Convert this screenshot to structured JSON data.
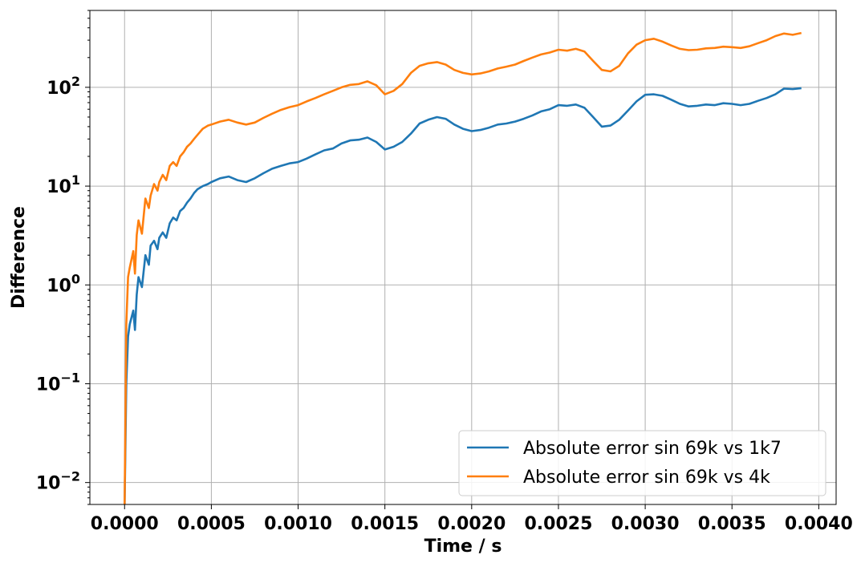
{
  "chart_data": {
    "type": "line",
    "xlabel": "Time / s",
    "ylabel": "Difference",
    "xlim": [
      -0.0002,
      0.0041
    ],
    "ylim": [
      0.006,
      600
    ],
    "yscale": "log",
    "grid": true,
    "legend_position": "bottom-right",
    "x_ticks": [
      "0.0000",
      "0.0005",
      "0.0010",
      "0.0015",
      "0.0020",
      "0.0025",
      "0.0030",
      "0.0035",
      "0.0040"
    ],
    "x_tick_values": [
      0,
      0.0005,
      0.001,
      0.0015,
      0.002,
      0.0025,
      0.003,
      0.0035,
      0.004
    ],
    "y_tick_values": [
      0.01,
      0.1,
      1,
      10,
      100
    ],
    "y_ticks": [
      {
        "base": "10",
        "exp": "−2"
      },
      {
        "base": "10",
        "exp": "−1"
      },
      {
        "base": "10",
        "exp": "0"
      },
      {
        "base": "10",
        "exp": "1"
      },
      {
        "base": "10",
        "exp": "2"
      }
    ],
    "series": [
      {
        "name": "Absolute error sin 69k vs 1k7",
        "color": "#1f77b4",
        "x": [
          0,
          1e-05,
          2e-05,
          3e-05,
          5e-05,
          6e-05,
          7e-05,
          8e-05,
          0.0001,
          0.00012,
          0.00014,
          0.00015,
          0.00017,
          0.00019,
          0.0002,
          0.00022,
          0.00024,
          0.00026,
          0.00028,
          0.0003,
          0.00032,
          0.00034,
          0.00036,
          0.00038,
          0.0004,
          0.00042,
          0.00045,
          0.00048,
          0.0005,
          0.00055,
          0.0006,
          0.00065,
          0.0007,
          0.00075,
          0.0008,
          0.00085,
          0.0009,
          0.00095,
          0.001,
          0.00105,
          0.0011,
          0.00115,
          0.0012,
          0.00125,
          0.0013,
          0.00135,
          0.0014,
          0.00145,
          0.0015,
          0.00155,
          0.0016,
          0.00165,
          0.0017,
          0.00175,
          0.0018,
          0.00185,
          0.0019,
          0.00195,
          0.002,
          0.00205,
          0.0021,
          0.00215,
          0.0022,
          0.00225,
          0.0023,
          0.00235,
          0.0024,
          0.00245,
          0.0025,
          0.00255,
          0.0026,
          0.00265,
          0.0027,
          0.00275,
          0.0028,
          0.00285,
          0.0029,
          0.00295,
          0.003,
          0.00305,
          0.0031,
          0.00315,
          0.0032,
          0.00325,
          0.0033,
          0.00335,
          0.0034,
          0.00345,
          0.0035,
          0.00355,
          0.0036,
          0.00365,
          0.0037,
          0.00375,
          0.0038,
          0.00385,
          0.0039
        ],
        "values": [
          0.006,
          0.1,
          0.3,
          0.4,
          0.55,
          0.35,
          0.8,
          1.2,
          0.95,
          2.0,
          1.6,
          2.5,
          2.8,
          2.3,
          3.0,
          3.4,
          3.0,
          4.2,
          4.8,
          4.5,
          5.6,
          6.0,
          6.8,
          7.5,
          8.5,
          9.3,
          10.0,
          10.5,
          11.0,
          12.0,
          12.5,
          11.5,
          11.0,
          12.0,
          13.5,
          15.0,
          16.0,
          17.0,
          17.5,
          19.0,
          21.0,
          23.0,
          24.0,
          27.0,
          29.0,
          29.5,
          31.0,
          28.0,
          23.5,
          25.0,
          28.0,
          34.0,
          43.0,
          47.0,
          50.0,
          48.0,
          42.0,
          38.0,
          36.0,
          37.0,
          39.0,
          42.0,
          43.0,
          45.0,
          48.0,
          52.0,
          57.0,
          60.0,
          66.0,
          65.0,
          67.0,
          62.0,
          50.0,
          40.0,
          41.0,
          47.0,
          58.0,
          72.0,
          84.0,
          85.0,
          82.0,
          75.0,
          68.0,
          64.0,
          65.0,
          67.0,
          66.0,
          69.0,
          68.0,
          66.0,
          68.0,
          73.0,
          78.0,
          85.0,
          97.0,
          96.0,
          98.0
        ]
      },
      {
        "name": "Absolute error sin 69k vs 4k",
        "color": "#ff7f0e",
        "x": [
          0,
          1e-05,
          2e-05,
          3e-05,
          5e-05,
          6e-05,
          7e-05,
          8e-05,
          0.0001,
          0.00012,
          0.00014,
          0.00015,
          0.00017,
          0.00019,
          0.0002,
          0.00022,
          0.00024,
          0.00026,
          0.00028,
          0.0003,
          0.00032,
          0.00034,
          0.00036,
          0.00038,
          0.0004,
          0.00042,
          0.00045,
          0.00048,
          0.0005,
          0.00055,
          0.0006,
          0.00065,
          0.0007,
          0.00075,
          0.0008,
          0.00085,
          0.0009,
          0.00095,
          0.001,
          0.00105,
          0.0011,
          0.00115,
          0.0012,
          0.00125,
          0.0013,
          0.00135,
          0.0014,
          0.00145,
          0.0015,
          0.00155,
          0.0016,
          0.00165,
          0.0017,
          0.00175,
          0.0018,
          0.00185,
          0.0019,
          0.00195,
          0.002,
          0.00205,
          0.0021,
          0.00215,
          0.0022,
          0.00225,
          0.0023,
          0.00235,
          0.0024,
          0.00245,
          0.0025,
          0.00255,
          0.0026,
          0.00265,
          0.0027,
          0.00275,
          0.0028,
          0.00285,
          0.0029,
          0.00295,
          0.003,
          0.00305,
          0.0031,
          0.00315,
          0.0032,
          0.00325,
          0.0033,
          0.00335,
          0.0034,
          0.00345,
          0.0035,
          0.00355,
          0.0036,
          0.00365,
          0.0037,
          0.00375,
          0.0038,
          0.00385,
          0.0039
        ],
        "values": [
          0.006,
          0.4,
          1.2,
          1.5,
          2.2,
          1.3,
          3.2,
          4.5,
          3.3,
          7.5,
          6.0,
          8.0,
          10.5,
          9.0,
          11.0,
          13.0,
          11.5,
          16.0,
          17.5,
          16.0,
          20.0,
          22.0,
          25.0,
          27.0,
          30.0,
          33.0,
          38.0,
          41.0,
          42.0,
          45.0,
          47.0,
          44.0,
          42.0,
          44.0,
          49.0,
          54.0,
          59.0,
          63.0,
          66.0,
          72.0,
          78.0,
          85.0,
          92.0,
          100.0,
          106.0,
          108.0,
          115.0,
          105.0,
          85.0,
          92.0,
          108.0,
          140.0,
          165.0,
          175.0,
          180.0,
          170.0,
          150.0,
          140.0,
          135.0,
          138.0,
          145.0,
          155.0,
          162.0,
          170.0,
          185.0,
          200.0,
          215.0,
          225.0,
          240.0,
          235.0,
          245.0,
          230.0,
          185.0,
          150.0,
          145.0,
          165.0,
          220.0,
          270.0,
          300.0,
          310.0,
          290.0,
          265.0,
          245.0,
          238.0,
          240.0,
          248.0,
          250.0,
          258.0,
          255.0,
          250.0,
          260.0,
          280.0,
          300.0,
          330.0,
          350.0,
          340.0,
          355.0
        ]
      }
    ]
  }
}
